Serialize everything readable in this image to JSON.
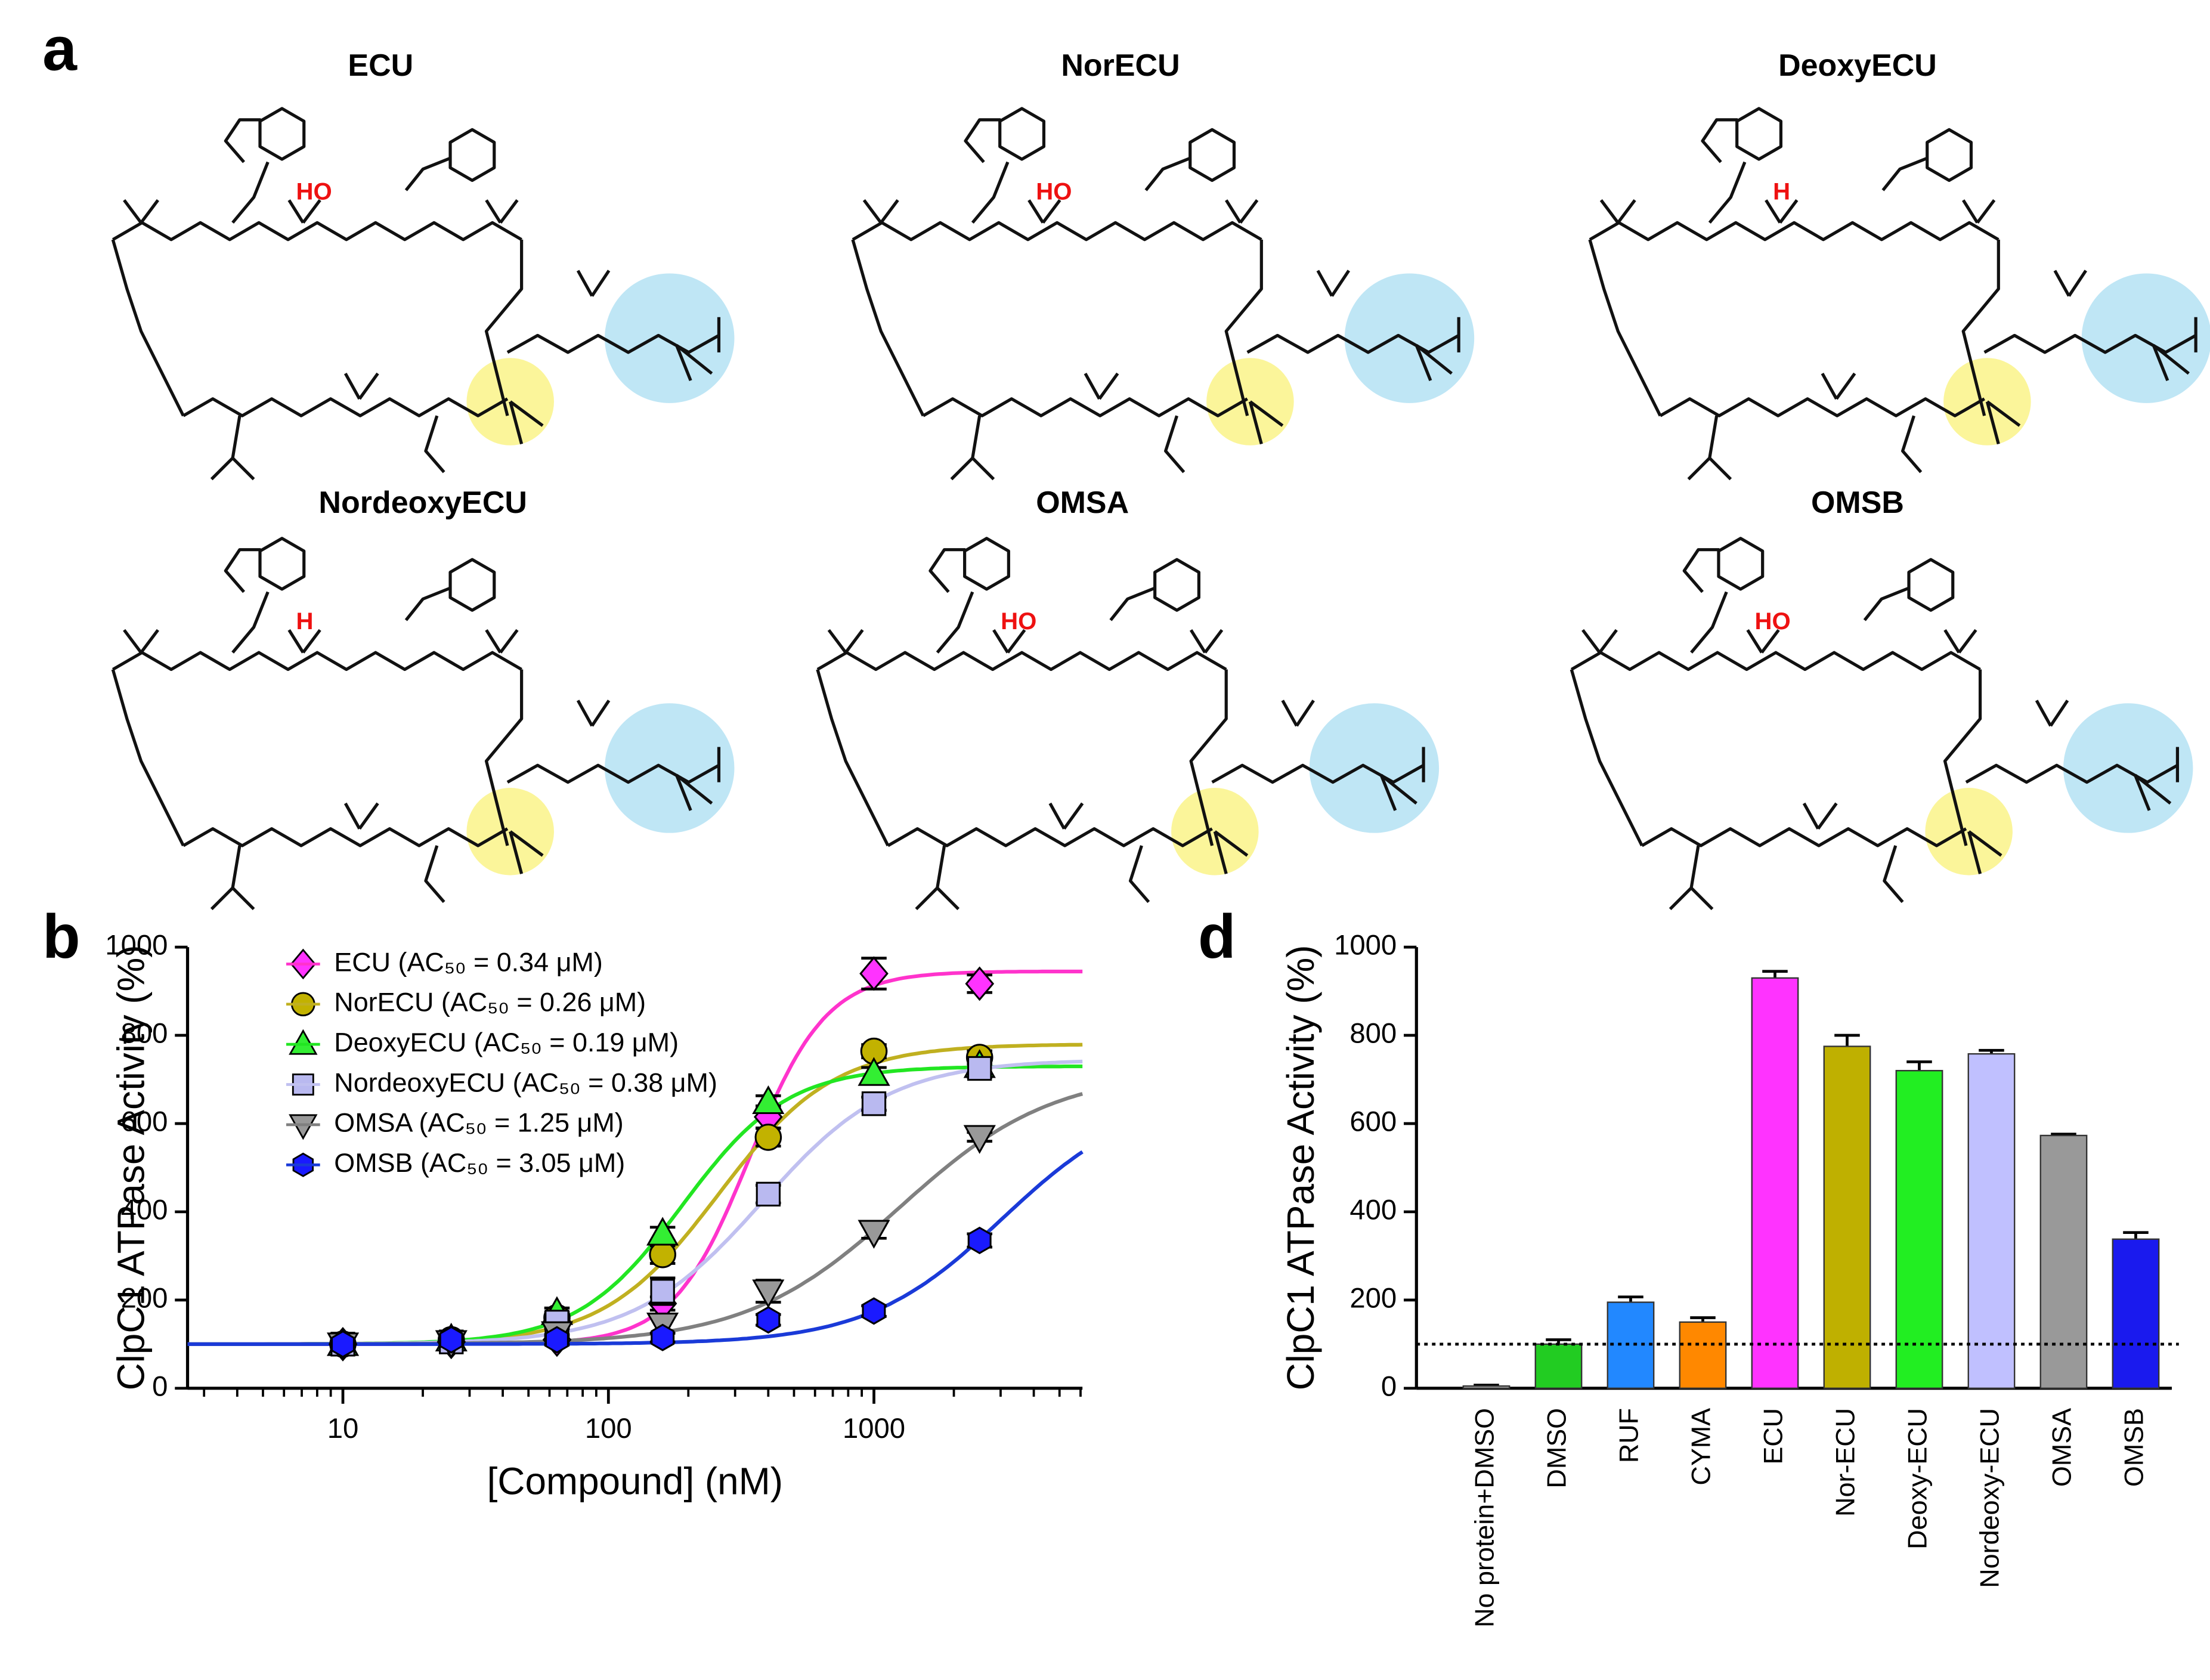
{
  "panel_labels": [
    "a",
    "b",
    "d"
  ],
  "structures": [
    {
      "name": "ECU",
      "mark": "HO"
    },
    {
      "name": "NorECU",
      "mark": "HO"
    },
    {
      "name": "DeoxyECU",
      "mark": "H"
    },
    {
      "name": "NordeoxyECU",
      "mark": "H"
    },
    {
      "name": "OMSA",
      "mark": "HO"
    },
    {
      "name": "OMSB",
      "mark": "HO"
    }
  ],
  "chart_data": [
    {
      "type": "dose_response",
      "xlabel": "[Compound] (nM)",
      "ylabel": "ClpC1 ATPase Activity (%)",
      "xscale": "log",
      "minor_ticks": true,
      "xlim": [
        2.6,
        6100
      ],
      "xticks": [
        10,
        100,
        1000
      ],
      "ylim": [
        0,
        1000
      ],
      "yticks": [
        0,
        200,
        400,
        600,
        800,
        1000
      ],
      "legend": "upper left",
      "x": [
        10,
        25.6,
        64,
        160,
        400,
        1000,
        2500
      ],
      "series": [
        {
          "name": "ECU (AC₅₀ = 0.34 μM)",
          "color": "#ff33ff",
          "line_color": "#ff33cc",
          "marker": "diamond",
          "values": [
            100,
            105,
            110,
            192,
            615,
            940,
            917
          ],
          "errors": [
            12,
            12,
            12,
            15,
            25,
            35,
            20
          ],
          "fit": {
            "bottom": 100,
            "top": 945,
            "mid": 340,
            "hill": 3.0
          }
        },
        {
          "name": "NorECU (AC₅₀ = 0.26 μM)",
          "color": "#c2b200",
          "line_color": "#c0b020",
          "marker": "circle",
          "values": [
            100,
            110,
            160,
            303,
            569,
            764,
            750
          ],
          "errors": [
            10,
            10,
            12,
            20,
            20,
            15,
            15
          ],
          "fit": {
            "bottom": 100,
            "top": 780,
            "mid": 260,
            "hill": 2.0
          }
        },
        {
          "name": "DeoxyECU (AC₅₀ = 0.19 μM)",
          "color": "#33ee33",
          "line_color": "#22e622",
          "marker": "triangle",
          "values": [
            100,
            110,
            170,
            350,
            648,
            712,
            730
          ],
          "errors": [
            10,
            10,
            12,
            15,
            15,
            15,
            15
          ],
          "fit": {
            "bottom": 100,
            "top": 730,
            "mid": 190,
            "hill": 2.2
          }
        },
        {
          "name": "NordeoxyECU (AC₅₀ = 0.38 μM)",
          "color": "#b9b9f0",
          "line_color": "#c0c0f0",
          "marker": "square",
          "values": [
            100,
            105,
            150,
            220,
            440,
            645,
            725
          ],
          "errors": [
            10,
            10,
            12,
            30,
            20,
            15,
            20
          ],
          "fit": {
            "bottom": 100,
            "top": 745,
            "mid": 380,
            "hill": 1.8
          }
        },
        {
          "name": "OMSA (AC₅₀ = 1.25 μM)",
          "color": "#999999",
          "line_color": "#808080",
          "marker": "invtriangle",
          "values": [
            100,
            105,
            125,
            145,
            220,
            355,
            570
          ],
          "errors": [
            10,
            10,
            10,
            20,
            25,
            15,
            10
          ],
          "fit": {
            "bottom": 100,
            "top": 720,
            "mid": 1250,
            "hill": 1.5
          }
        },
        {
          "name": "OMSB (AC₅₀ = 3.05 μM)",
          "color": "#1a1aff",
          "line_color": "#1a3ad8",
          "marker": "hexagon",
          "values": [
            100,
            110,
            110,
            115,
            155,
            175,
            335
          ],
          "errors": [
            10,
            10,
            10,
            10,
            12,
            12,
            15
          ],
          "fit": {
            "bottom": 100,
            "top": 670,
            "mid": 3050,
            "hill": 1.7
          }
        }
      ]
    },
    {
      "type": "bar",
      "ylabel": "ClpC1 ATPase Activity (%)",
      "ylim": [
        0,
        1000
      ],
      "yticks": [
        0,
        200,
        400,
        600,
        800,
        1000
      ],
      "reference_line": 100,
      "categories": [
        "No protein+DMSO",
        "DMSO",
        "RUF",
        "CYMA",
        "ECU",
        "Nor-ECU",
        "Deoxy-ECU",
        "Nordeoxy-ECU",
        "OMSA",
        "OMSB"
      ],
      "values": [
        5,
        100,
        195,
        150,
        930,
        775,
        720,
        758,
        573,
        338
      ],
      "errors": [
        2,
        10,
        12,
        10,
        15,
        25,
        20,
        8,
        3,
        15
      ],
      "colors": [
        "#bbbbbb",
        "#22cc22",
        "#2288ff",
        "#ff8800",
        "#ff33ff",
        "#bfb000",
        "#22ee22",
        "#c0c0ff",
        "#999999",
        "#1a1aee"
      ]
    }
  ]
}
